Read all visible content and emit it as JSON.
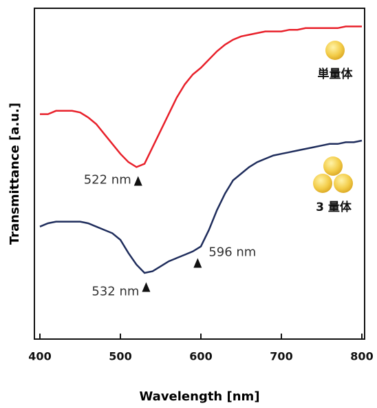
{
  "chart_data": {
    "type": "line",
    "x_label": "Wavelength [nm]",
    "y_label": "Transmittance [a.u.]",
    "x": [
      400,
      410,
      420,
      430,
      440,
      450,
      460,
      470,
      480,
      490,
      500,
      510,
      520,
      530,
      540,
      550,
      560,
      570,
      580,
      590,
      600,
      610,
      620,
      630,
      640,
      650,
      660,
      670,
      680,
      690,
      700,
      710,
      720,
      730,
      740,
      750,
      760,
      770,
      780,
      790,
      800
    ],
    "series": [
      {
        "name": "単量体",
        "color": "#e8202a",
        "values": [
          0.68,
          0.68,
          0.69,
          0.69,
          0.69,
          0.685,
          0.67,
          0.65,
          0.62,
          0.59,
          0.56,
          0.535,
          0.52,
          0.53,
          0.58,
          0.63,
          0.68,
          0.73,
          0.77,
          0.8,
          0.82,
          0.845,
          0.87,
          0.89,
          0.905,
          0.915,
          0.92,
          0.925,
          0.93,
          0.93,
          0.93,
          0.935,
          0.935,
          0.94,
          0.94,
          0.94,
          0.94,
          0.94,
          0.945,
          0.945,
          0.945
        ]
      },
      {
        "name": "3 量体",
        "color": "#1f2d5c",
        "values": [
          0.34,
          0.35,
          0.355,
          0.355,
          0.355,
          0.355,
          0.35,
          0.34,
          0.33,
          0.32,
          0.3,
          0.26,
          0.225,
          0.2,
          0.205,
          0.22,
          0.235,
          0.245,
          0.255,
          0.265,
          0.28,
          0.33,
          0.39,
          0.44,
          0.48,
          0.5,
          0.52,
          0.535,
          0.545,
          0.555,
          0.56,
          0.565,
          0.57,
          0.575,
          0.58,
          0.585,
          0.59,
          0.59,
          0.595,
          0.595,
          0.6
        ]
      }
    ],
    "annotations": [
      {
        "text": "522 nm",
        "x": 522,
        "series": 0
      },
      {
        "text": "532 nm",
        "x": 532,
        "series": 1
      },
      {
        "text": "596 nm",
        "x": 596,
        "series": 1
      }
    ],
    "xlim": [
      400,
      800
    ],
    "xticks": [
      400,
      500,
      600,
      700,
      800
    ],
    "ylim": [
      0,
      1
    ]
  }
}
